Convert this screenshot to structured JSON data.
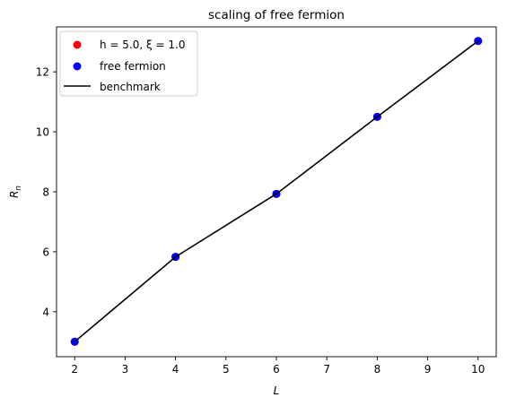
{
  "chart_data": {
    "type": "scatter",
    "title": "scaling of free fermion",
    "xlabel": "L",
    "ylabel": "R",
    "ylabel_subscript": "n",
    "xlim": [
      1.64,
      10.36
    ],
    "ylim": [
      2.5,
      13.5
    ],
    "xticks": [
      2,
      3,
      4,
      5,
      6,
      7,
      8,
      9,
      10
    ],
    "yticks": [
      4,
      6,
      8,
      10,
      12
    ],
    "grid": false,
    "legend_position": "upper-left",
    "series": [
      {
        "name": "h = 5.0, ξ = 1.0",
        "kind": "scatter",
        "color": "#ff0000",
        "x": [
          2,
          4,
          6,
          8,
          10
        ],
        "y": [
          3.0,
          5.83,
          7.93,
          10.5,
          13.03
        ]
      },
      {
        "name": "free fermion",
        "kind": "scatter",
        "color": "#0000ff",
        "x": [
          2,
          4,
          6,
          8,
          10
        ],
        "y": [
          3.0,
          5.83,
          7.93,
          10.5,
          13.03
        ]
      },
      {
        "name": "benchmark",
        "kind": "line",
        "color": "#000000",
        "x": [
          2,
          4,
          6,
          8,
          10
        ],
        "y": [
          3.0,
          5.83,
          7.93,
          10.5,
          13.03
        ]
      }
    ]
  }
}
